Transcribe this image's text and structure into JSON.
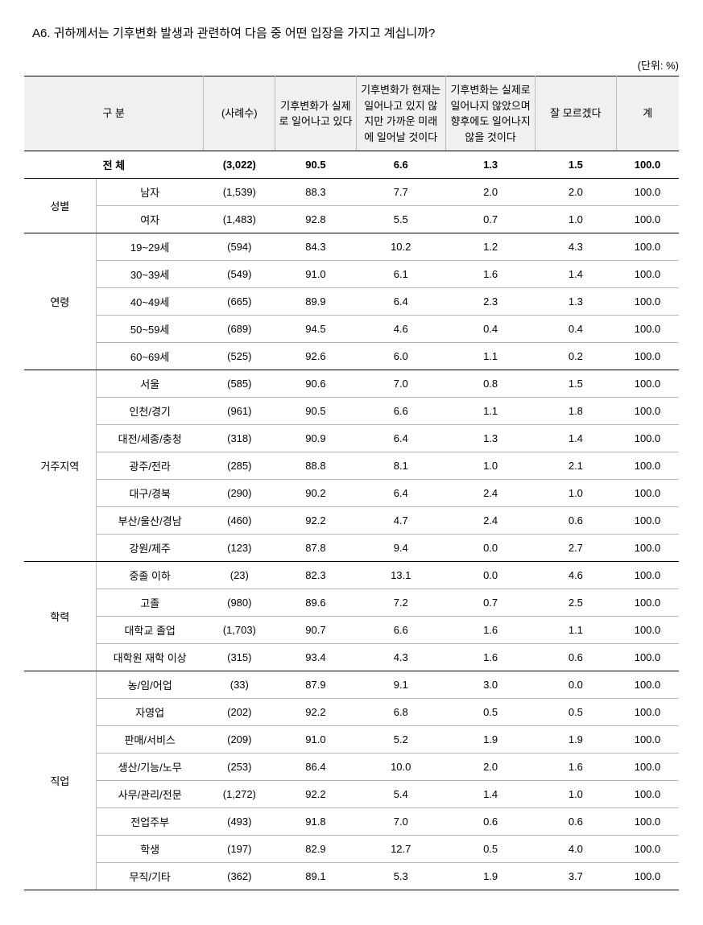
{
  "title": "A6. 귀하께서는 기후변화 발생과 관련하여 다음 중 어떤 입장을 가지고 계십니까?",
  "unit": "(단위: %)",
  "headers": {
    "category": "구       분",
    "n": "(사례수)",
    "c1": "기후변화가 실제로 일어나고 있다",
    "c2": "기후변화가 현재는 일어나고 있지 않지만 가까운 미래에 일어날 것이다",
    "c3": "기후변화는 실제로 일어나지 않았으며 향후에도 일어나지 않을 것이다",
    "c4": "잘 모르겠다",
    "c5": "계"
  },
  "totalLabel": "전       체",
  "total": {
    "n": "(3,022)",
    "c1": "90.5",
    "c2": "6.6",
    "c3": "1.3",
    "c4": "1.5",
    "c5": "100.0"
  },
  "groups": [
    {
      "label": "성별",
      "rows": [
        {
          "sub": "남자",
          "n": "(1,539)",
          "c1": "88.3",
          "c2": "7.7",
          "c3": "2.0",
          "c4": "2.0",
          "c5": "100.0"
        },
        {
          "sub": "여자",
          "n": "(1,483)",
          "c1": "92.8",
          "c2": "5.5",
          "c3": "0.7",
          "c4": "1.0",
          "c5": "100.0"
        }
      ]
    },
    {
      "label": "연령",
      "rows": [
        {
          "sub": "19~29세",
          "n": "(594)",
          "c1": "84.3",
          "c2": "10.2",
          "c3": "1.2",
          "c4": "4.3",
          "c5": "100.0"
        },
        {
          "sub": "30~39세",
          "n": "(549)",
          "c1": "91.0",
          "c2": "6.1",
          "c3": "1.6",
          "c4": "1.4",
          "c5": "100.0"
        },
        {
          "sub": "40~49세",
          "n": "(665)",
          "c1": "89.9",
          "c2": "6.4",
          "c3": "2.3",
          "c4": "1.3",
          "c5": "100.0"
        },
        {
          "sub": "50~59세",
          "n": "(689)",
          "c1": "94.5",
          "c2": "4.6",
          "c3": "0.4",
          "c4": "0.4",
          "c5": "100.0"
        },
        {
          "sub": "60~69세",
          "n": "(525)",
          "c1": "92.6",
          "c2": "6.0",
          "c3": "1.1",
          "c4": "0.2",
          "c5": "100.0"
        }
      ]
    },
    {
      "label": "거주지역",
      "rows": [
        {
          "sub": "서울",
          "n": "(585)",
          "c1": "90.6",
          "c2": "7.0",
          "c3": "0.8",
          "c4": "1.5",
          "c5": "100.0"
        },
        {
          "sub": "인천/경기",
          "n": "(961)",
          "c1": "90.5",
          "c2": "6.6",
          "c3": "1.1",
          "c4": "1.8",
          "c5": "100.0"
        },
        {
          "sub": "대전/세종/충청",
          "n": "(318)",
          "c1": "90.9",
          "c2": "6.4",
          "c3": "1.3",
          "c4": "1.4",
          "c5": "100.0"
        },
        {
          "sub": "광주/전라",
          "n": "(285)",
          "c1": "88.8",
          "c2": "8.1",
          "c3": "1.0",
          "c4": "2.1",
          "c5": "100.0"
        },
        {
          "sub": "대구/경북",
          "n": "(290)",
          "c1": "90.2",
          "c2": "6.4",
          "c3": "2.4",
          "c4": "1.0",
          "c5": "100.0"
        },
        {
          "sub": "부산/울산/경남",
          "n": "(460)",
          "c1": "92.2",
          "c2": "4.7",
          "c3": "2.4",
          "c4": "0.6",
          "c5": "100.0"
        },
        {
          "sub": "강원/제주",
          "n": "(123)",
          "c1": "87.8",
          "c2": "9.4",
          "c3": "0.0",
          "c4": "2.7",
          "c5": "100.0"
        }
      ]
    },
    {
      "label": "학력",
      "rows": [
        {
          "sub": "중졸 이하",
          "n": "(23)",
          "c1": "82.3",
          "c2": "13.1",
          "c3": "0.0",
          "c4": "4.6",
          "c5": "100.0"
        },
        {
          "sub": "고졸",
          "n": "(980)",
          "c1": "89.6",
          "c2": "7.2",
          "c3": "0.7",
          "c4": "2.5",
          "c5": "100.0"
        },
        {
          "sub": "대학교 졸업",
          "n": "(1,703)",
          "c1": "90.7",
          "c2": "6.6",
          "c3": "1.6",
          "c4": "1.1",
          "c5": "100.0"
        },
        {
          "sub": "대학원 재학 이상",
          "n": "(315)",
          "c1": "93.4",
          "c2": "4.3",
          "c3": "1.6",
          "c4": "0.6",
          "c5": "100.0"
        }
      ]
    },
    {
      "label": "직업",
      "rows": [
        {
          "sub": "농/임/어업",
          "n": "(33)",
          "c1": "87.9",
          "c2": "9.1",
          "c3": "3.0",
          "c4": "0.0",
          "c5": "100.0"
        },
        {
          "sub": "자영업",
          "n": "(202)",
          "c1": "92.2",
          "c2": "6.8",
          "c3": "0.5",
          "c4": "0.5",
          "c5": "100.0"
        },
        {
          "sub": "판매/서비스",
          "n": "(209)",
          "c1": "91.0",
          "c2": "5.2",
          "c3": "1.9",
          "c4": "1.9",
          "c5": "100.0"
        },
        {
          "sub": "생산/기능/노무",
          "n": "(253)",
          "c1": "86.4",
          "c2": "10.0",
          "c3": "2.0",
          "c4": "1.6",
          "c5": "100.0"
        },
        {
          "sub": "사무/관리/전문",
          "n": "(1,272)",
          "c1": "92.2",
          "c2": "5.4",
          "c3": "1.4",
          "c4": "1.0",
          "c5": "100.0"
        },
        {
          "sub": "전업주부",
          "n": "(493)",
          "c1": "91.8",
          "c2": "7.0",
          "c3": "0.6",
          "c4": "0.6",
          "c5": "100.0"
        },
        {
          "sub": "학생",
          "n": "(197)",
          "c1": "82.9",
          "c2": "12.7",
          "c3": "0.5",
          "c4": "4.0",
          "c5": "100.0"
        },
        {
          "sub": "무직/기타",
          "n": "(362)",
          "c1": "89.1",
          "c2": "5.3",
          "c3": "1.9",
          "c4": "3.7",
          "c5": "100.0"
        }
      ]
    }
  ]
}
